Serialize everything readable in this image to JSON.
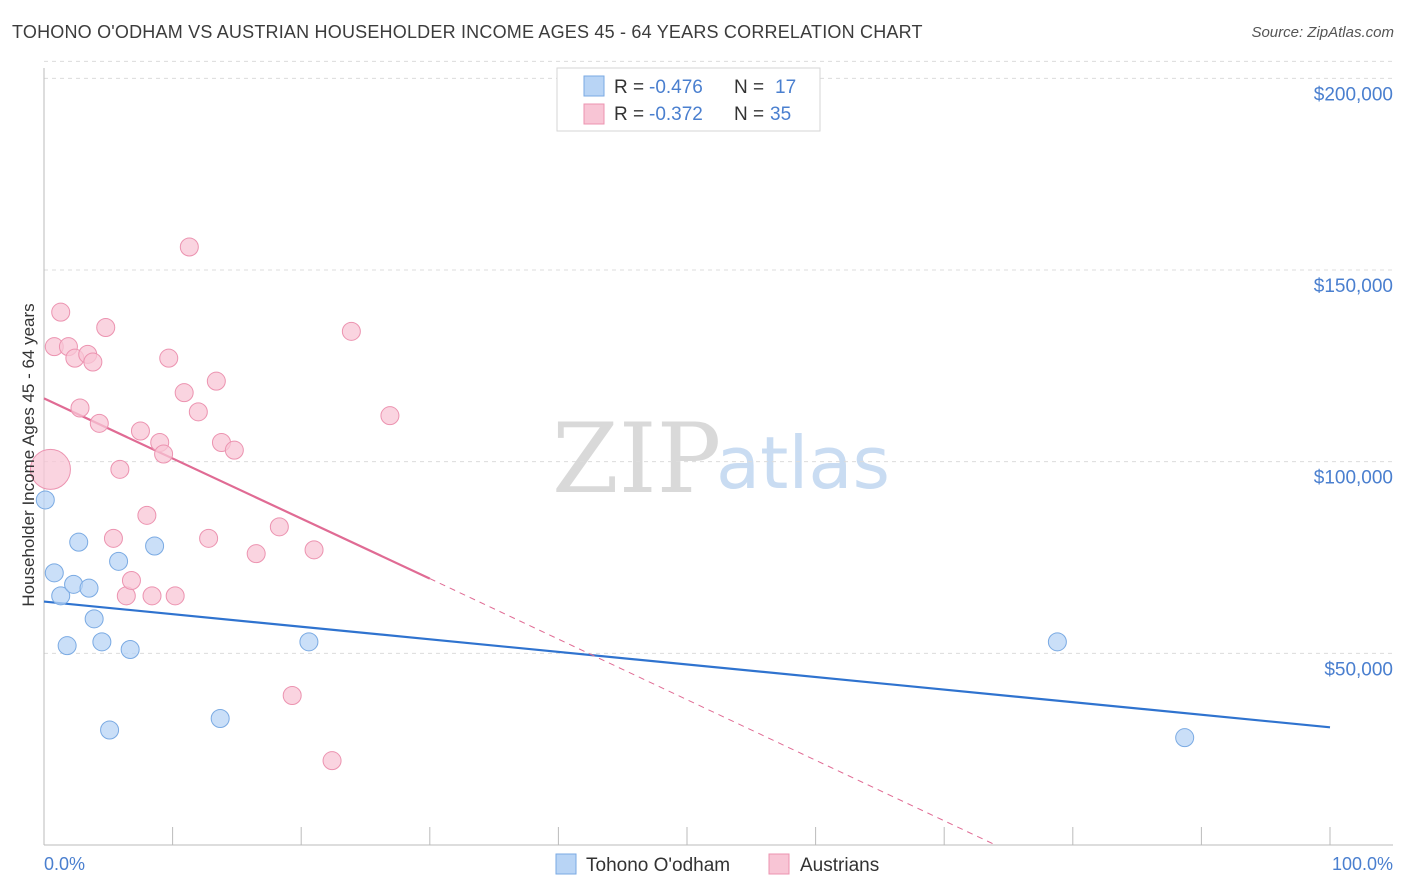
{
  "title": "TOHONO O'ODHAM VS AUSTRIAN HOUSEHOLDER INCOME AGES 45 - 64 YEARS CORRELATION CHART",
  "source": "Source: ZipAtlas.com",
  "colors": {
    "blue_fill": "#b8d4f5",
    "blue_stroke": "#7aaae3",
    "blue_line": "#2f73cf",
    "pink_fill": "#f8c5d5",
    "pink_stroke": "#ec93b0",
    "pink_line": "#e06b94",
    "grid": "#dcdcdc",
    "axis_text": "#4a7fcf"
  },
  "legend": {
    "rows": [
      {
        "r_label": "R = ",
        "r_value": "-0.476",
        "n_label": "N = ",
        "n_value": "17"
      },
      {
        "r_label": "R = ",
        "r_value": "-0.372",
        "n_label": "N = ",
        "n_value": "35"
      }
    ]
  },
  "bottom_legend": [
    "Tohono O'odham",
    "Austrians"
  ],
  "watermark": {
    "zip": "ZIP",
    "atlas": "atlas"
  },
  "chart_data": {
    "type": "scatter",
    "title": "TOHONO O'ODHAM VS AUSTRIAN HOUSEHOLDER INCOME AGES 45 - 64 YEARS CORRELATION CHART",
    "xlabel": "",
    "ylabel": "Householder Income Ages 45 - 64 years",
    "xlim": [
      0,
      100
    ],
    "ylim": [
      0,
      200000
    ],
    "x_tick_labels": [
      "0.0%",
      "100.0%"
    ],
    "y_ticks": [
      50000,
      100000,
      150000,
      200000
    ],
    "y_tick_labels": [
      "$50,000",
      "$100,000",
      "$150,000",
      "$200,000"
    ],
    "grid": true,
    "legend_position": "top-center",
    "series": [
      {
        "name": "Tohono O'odham",
        "color": "blue",
        "points": [
          [
            0.1,
            90000
          ],
          [
            0.8,
            71000
          ],
          [
            1.3,
            65000
          ],
          [
            1.8,
            52000
          ],
          [
            2.3,
            68000
          ],
          [
            2.7,
            79000
          ],
          [
            3.5,
            67000
          ],
          [
            3.9,
            59000
          ],
          [
            4.5,
            53000
          ],
          [
            5.1,
            30000
          ],
          [
            5.8,
            74000
          ],
          [
            6.7,
            51000
          ],
          [
            8.6,
            78000
          ],
          [
            13.7,
            33000
          ],
          [
            20.6,
            53000
          ],
          [
            78.8,
            53000
          ],
          [
            88.7,
            28000
          ]
        ],
        "trend": {
          "x": [
            0,
            100
          ],
          "y": [
            63500,
            30700
          ],
          "dashed_x": null
        }
      },
      {
        "name": "Austrians",
        "color": "pink",
        "points": [
          [
            0.5,
            98000
          ],
          [
            0.8,
            130000
          ],
          [
            1.3,
            139000
          ],
          [
            1.9,
            130000
          ],
          [
            2.4,
            127000
          ],
          [
            2.8,
            114000
          ],
          [
            3.4,
            128000
          ],
          [
            3.8,
            126000
          ],
          [
            4.3,
            110000
          ],
          [
            4.8,
            135000
          ],
          [
            5.4,
            80000
          ],
          [
            5.9,
            98000
          ],
          [
            6.4,
            65000
          ],
          [
            6.8,
            69000
          ],
          [
            7.5,
            108000
          ],
          [
            8.0,
            86000
          ],
          [
            8.4,
            65000
          ],
          [
            9.0,
            105000
          ],
          [
            9.3,
            102000
          ],
          [
            9.7,
            127000
          ],
          [
            10.2,
            65000
          ],
          [
            10.9,
            118000
          ],
          [
            11.3,
            156000
          ],
          [
            12.0,
            113000
          ],
          [
            12.8,
            80000
          ],
          [
            13.4,
            121000
          ],
          [
            13.8,
            105000
          ],
          [
            14.8,
            103000
          ],
          [
            16.5,
            76000
          ],
          [
            18.3,
            83000
          ],
          [
            19.3,
            39000
          ],
          [
            21.0,
            77000
          ],
          [
            22.4,
            22000
          ],
          [
            23.9,
            134000
          ],
          [
            26.9,
            112000
          ]
        ],
        "trend": {
          "x": [
            0,
            30
          ],
          "y": [
            116500,
            69500
          ],
          "dashed_to": [
            74,
            0
          ]
        }
      }
    ]
  }
}
